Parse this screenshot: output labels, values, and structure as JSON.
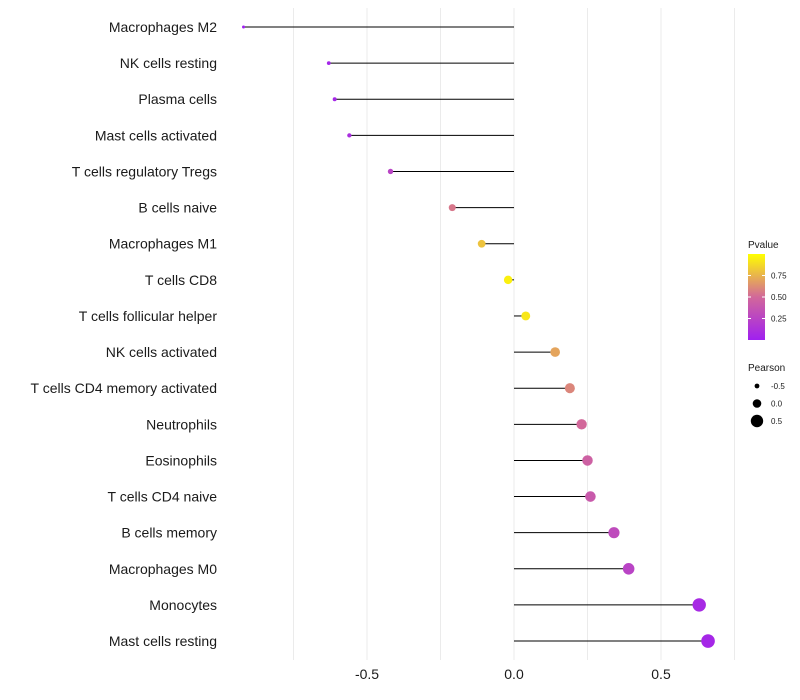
{
  "chart_data": {
    "type": "lollipop",
    "title": "",
    "xlabel": "",
    "ylabel": "",
    "xlim": [
      -1.0,
      0.75
    ],
    "xticks": [
      -0.5,
      0.0,
      0.5
    ],
    "xtick_labels": [
      "-0.5",
      "0.0",
      "0.5"
    ],
    "grid": true,
    "categories": [
      "Macrophages M2",
      "NK cells resting",
      "Plasma cells",
      "Mast cells activated",
      "T cells regulatory  Tregs",
      "B cells naive",
      "Macrophages M1",
      "T cells CD8",
      "T cells follicular helper",
      "NK cells activated",
      "T cells CD4 memory activated",
      "Neutrophils",
      "Eosinophils",
      "T cells CD4 naive",
      "B cells memory",
      "Macrophages M0",
      "Monocytes",
      "Mast cells resting"
    ],
    "pearson": [
      -0.92,
      -0.63,
      -0.61,
      -0.56,
      -0.42,
      -0.21,
      -0.11,
      -0.02,
      0.04,
      0.14,
      0.19,
      0.23,
      0.25,
      0.26,
      0.34,
      0.39,
      0.63,
      0.66
    ],
    "pvalue": [
      0.002,
      0.04,
      0.05,
      0.1,
      0.25,
      0.55,
      0.8,
      0.95,
      0.92,
      0.7,
      0.6,
      0.5,
      0.45,
      0.4,
      0.3,
      0.25,
      0.07,
      0.05
    ],
    "color_legend": {
      "title": "Pvalue",
      "ticks": [
        0.25,
        0.5,
        0.75
      ],
      "tick_labels": [
        "0.25",
        "0.50",
        "0.75"
      ],
      "low_color": "#a020f0",
      "mid_color": "#d2689a",
      "high_color": "#ffff00",
      "range": [
        0.0,
        1.0
      ]
    },
    "size_legend": {
      "title": "Pearson",
      "values": [
        -0.5,
        0.0,
        0.5
      ],
      "labels": [
        "-0.5",
        "0.0",
        "0.5"
      ]
    }
  }
}
